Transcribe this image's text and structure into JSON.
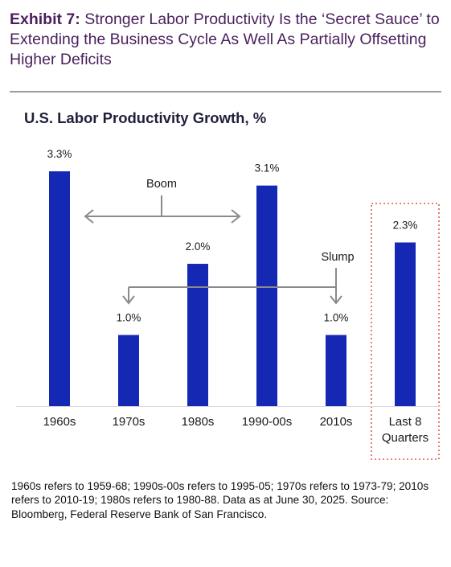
{
  "exhibit": {
    "label": "Exhibit 7:",
    "title": "Stronger Labor Productivity Is the ‘Secret Sauce’ to Extending the Business Cycle As Well As Partially Offsetting Higher Deficits"
  },
  "colors": {
    "bar": "#1428b4",
    "arrow": "#8a8a8a",
    "highlight_border": "#e05a4e",
    "exhibit_title": "#4a1f5c"
  },
  "chart_data": {
    "type": "bar",
    "title": "U.S. Labor Productivity Growth, %",
    "categories": [
      "1960s",
      "1970s",
      "1980s",
      "1990-00s",
      "2010s",
      "Last 8 Quarters"
    ],
    "category_lines": [
      [
        "1960s"
      ],
      [
        "1970s"
      ],
      [
        "1980s"
      ],
      [
        "1990-00s"
      ],
      [
        "2010s"
      ],
      [
        "Last 8",
        "Quarters"
      ]
    ],
    "values": [
      3.3,
      1.0,
      2.0,
      3.1,
      1.0,
      2.3
    ],
    "data_labels": [
      "3.3%",
      "1.0%",
      "2.0%",
      "3.1%",
      "1.0%",
      "2.3%"
    ],
    "ylim": [
      0,
      3.3
    ],
    "grid": false,
    "annotations": {
      "boom": "Boom",
      "slump": "Slump"
    },
    "highlighted_category": "Last 8 Quarters"
  },
  "footnote": "1960s refers to 1959-68; 1990s-00s refers to 1995-05; 1970s refers to 1973-79; 2010s refers to 2010-19; 1980s refers to 1980-88. Data as at June 30, 2025. Source: Bloomberg, Federal Reserve Bank of San Francisco."
}
